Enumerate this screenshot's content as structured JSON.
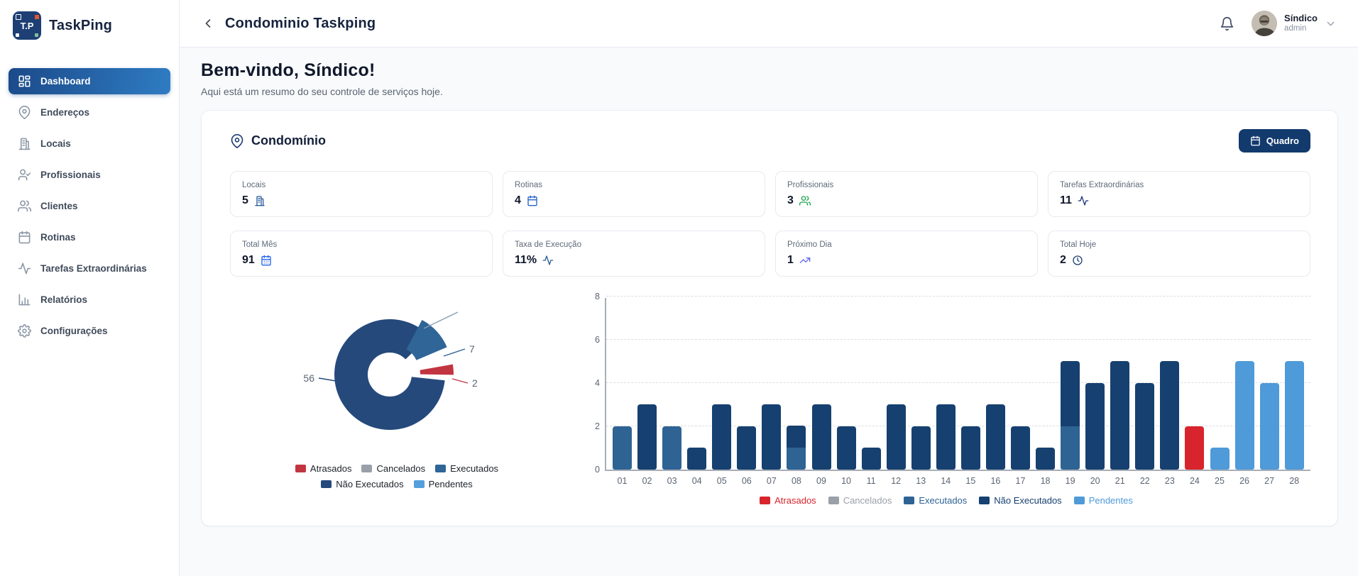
{
  "brand": {
    "name": "TaskPing",
    "logo_text": "T.P"
  },
  "sidebar": {
    "items": [
      {
        "label": "Dashboard",
        "icon": "layout-dashboard",
        "active": true
      },
      {
        "label": "Endereços",
        "icon": "map-pin",
        "active": false
      },
      {
        "label": "Locais",
        "icon": "building",
        "active": false
      },
      {
        "label": "Profissionais",
        "icon": "user-check",
        "active": false
      },
      {
        "label": "Clientes",
        "icon": "users",
        "active": false
      },
      {
        "label": "Rotinas",
        "icon": "calendar",
        "active": false
      },
      {
        "label": "Tarefas Extraordinárias",
        "icon": "activity",
        "active": false
      },
      {
        "label": "Relatórios",
        "icon": "bar-chart",
        "active": false
      },
      {
        "label": "Configurações",
        "icon": "settings",
        "active": false
      }
    ]
  },
  "topbar": {
    "title": "Condominio Taskping",
    "user": {
      "name": "Síndico",
      "role": "admin"
    }
  },
  "welcome": {
    "title": "Bem-vindo, Síndico!",
    "subtitle": "Aqui está um resumo do seu controle de serviços hoje."
  },
  "panel": {
    "title": "Condomínio",
    "button_label": "Quadro"
  },
  "stats": [
    {
      "label": "Locais",
      "value": "5",
      "icon": "building",
      "color": "#2d5d9d"
    },
    {
      "label": "Rotinas",
      "value": "4",
      "icon": "calendar",
      "color": "#2563c8"
    },
    {
      "label": "Profissionais",
      "value": "3",
      "icon": "users",
      "color": "#18a34a"
    },
    {
      "label": "Tarefas Extraordinárias",
      "value": "11",
      "icon": "activity",
      "color": "#1e3a7a"
    },
    {
      "label": "Total Mês",
      "value": "91",
      "icon": "calendar-days",
      "color": "#2563eb"
    },
    {
      "label": "Taxa de Execução",
      "value": "11%",
      "icon": "activity",
      "color": "#2d5d92"
    },
    {
      "label": "Próximo Dia",
      "value": "1",
      "icon": "trending-up",
      "color": "#6366f1"
    },
    {
      "label": "Total Hoje",
      "value": "2",
      "icon": "clock",
      "color": "#1e3f73"
    }
  ],
  "chart_data": [
    {
      "type": "pie",
      "variant": "doughnut",
      "legend_position": "bottom",
      "slices": [
        {
          "name": "Atrasados",
          "value": 2,
          "color": "#c23540"
        },
        {
          "name": "Cancelados",
          "value": 0,
          "color": "#9aa0a8"
        },
        {
          "name": "Executados",
          "value": 7,
          "color": "#2f6597"
        },
        {
          "name": "Não Executados",
          "value": 56,
          "color": "#25497b"
        },
        {
          "name": "Pendentes",
          "value": 0,
          "color": "#55a0dc"
        }
      ],
      "data_labels": [
        {
          "slice": "Não Executados",
          "text": "56"
        },
        {
          "slice": "Executados",
          "text": "7"
        },
        {
          "slice": "Atrasados",
          "text": "2"
        }
      ]
    },
    {
      "type": "bar",
      "stacked": true,
      "ylim": [
        0,
        8
      ],
      "yticks": [
        0,
        2,
        4,
        6,
        8
      ],
      "grid": "dashed",
      "legend_position": "bottom",
      "categories": [
        "01",
        "02",
        "03",
        "04",
        "05",
        "06",
        "07",
        "08",
        "09",
        "10",
        "11",
        "12",
        "13",
        "14",
        "15",
        "16",
        "17",
        "18",
        "19",
        "20",
        "21",
        "22",
        "23",
        "24",
        "25",
        "26",
        "27",
        "28"
      ],
      "series": [
        {
          "name": "Atrasados",
          "color": "#d8242c",
          "values": [
            0,
            0,
            0,
            0,
            0,
            0,
            0,
            0,
            0,
            0,
            0,
            0,
            0,
            0,
            0,
            0,
            0,
            0,
            0,
            0,
            0,
            0,
            0,
            2,
            0,
            0,
            0,
            0
          ]
        },
        {
          "name": "Cancelados",
          "color": "#9aa0a8",
          "values": [
            0,
            0,
            0,
            0,
            0,
            0,
            0,
            0,
            0,
            0,
            0,
            0,
            0,
            0,
            0,
            0,
            0,
            0,
            0,
            0,
            0,
            0,
            0,
            0,
            0,
            0,
            0,
            0
          ]
        },
        {
          "name": "Executados",
          "color": "#2e6394",
          "values": [
            2,
            0,
            2,
            0,
            0,
            0,
            0,
            1,
            0,
            0,
            0,
            0,
            0,
            0,
            0,
            0,
            0,
            0,
            2,
            0,
            0,
            0,
            0,
            0,
            0,
            0,
            0,
            0
          ]
        },
        {
          "name": "Não Executados",
          "color": "#16406f",
          "values": [
            0,
            3,
            0,
            1,
            3,
            2,
            3,
            1,
            3,
            2,
            1,
            3,
            2,
            3,
            2,
            3,
            2,
            1,
            3,
            4,
            5,
            4,
            5,
            0,
            0,
            0,
            0,
            0
          ]
        },
        {
          "name": "Pendentes",
          "color": "#4f9ad8",
          "values": [
            0,
            0,
            0,
            0,
            0,
            0,
            0,
            0,
            0,
            0,
            0,
            0,
            0,
            0,
            0,
            0,
            0,
            0,
            0,
            0,
            0,
            0,
            0,
            0,
            1,
            5,
            4,
            5
          ]
        }
      ]
    }
  ]
}
